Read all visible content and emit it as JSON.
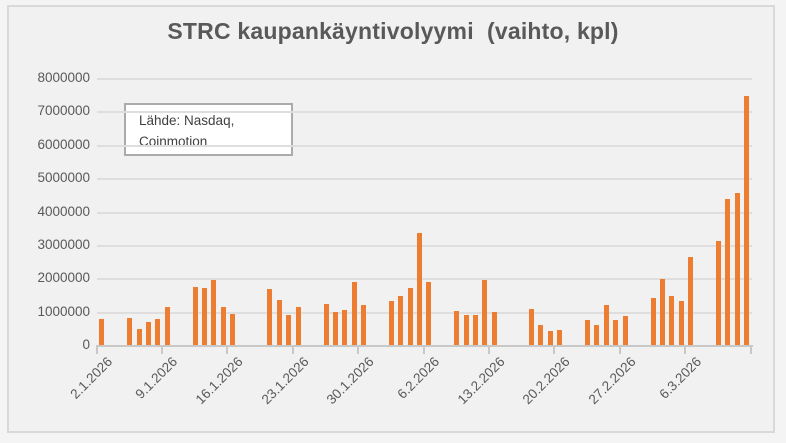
{
  "title": "STRC kaupankäyntivolyymi  (vaihto, kpl)",
  "source_box": {
    "line1": "Lähde: Nasdaq,",
    "line2": "Coinmotion"
  },
  "colors": {
    "bar": "#ED7D31",
    "chart_background": "#F1F1F1",
    "frame_border": "#D9D9D9",
    "gridline": "#DEDEDE",
    "axis_line": "#C8C8C8",
    "label_text": "#595959",
    "annotation_text": "#404040",
    "annotation_border": "#ABABAB"
  },
  "chart_data": {
    "type": "bar",
    "title": "STRC kaupankäyntivolyymi (vaihto, kpl)",
    "xlabel": "",
    "ylabel": "",
    "ylim": [
      0,
      8000000
    ],
    "y_tick_step": 1000000,
    "grid": true,
    "legend": false,
    "annotation": "Lähde: Nasdaq, Coinmotion",
    "y_tick_labels": [
      "0",
      "1000000",
      "2000000",
      "3000000",
      "4000000",
      "5000000",
      "6000000",
      "7000000",
      "8000000"
    ],
    "x_tick_labels": [
      "2.1.2026",
      "9.1.2026",
      "16.1.2026",
      "23.1.2026",
      "30.1.2026",
      "6.2.2026",
      "13.2.2026",
      "20.2.2026",
      "27.2.2026",
      "6.3.2026"
    ],
    "points": [
      {
        "date": "2.1.2026",
        "value": 780000
      },
      {
        "date": "5.1.2026",
        "value": 820000
      },
      {
        "date": "6.1.2026",
        "value": 470000
      },
      {
        "date": "7.1.2026",
        "value": 700000
      },
      {
        "date": "8.1.2026",
        "value": 780000
      },
      {
        "date": "9.1.2026",
        "value": 1130000
      },
      {
        "date": "12.1.2026",
        "value": 1750000
      },
      {
        "date": "13.1.2026",
        "value": 1720000
      },
      {
        "date": "14.1.2026",
        "value": 1950000
      },
      {
        "date": "15.1.2026",
        "value": 1150000
      },
      {
        "date": "16.1.2026",
        "value": 920000
      },
      {
        "date": "20.1.2026",
        "value": 1680000
      },
      {
        "date": "21.1.2026",
        "value": 1350000
      },
      {
        "date": "22.1.2026",
        "value": 900000
      },
      {
        "date": "23.1.2026",
        "value": 1150000
      },
      {
        "date": "26.1.2026",
        "value": 1220000
      },
      {
        "date": "27.1.2026",
        "value": 1000000
      },
      {
        "date": "28.1.2026",
        "value": 1050000
      },
      {
        "date": "29.1.2026",
        "value": 1900000
      },
      {
        "date": "30.1.2026",
        "value": 1200000
      },
      {
        "date": "2.2.2026",
        "value": 1330000
      },
      {
        "date": "3.2.2026",
        "value": 1470000
      },
      {
        "date": "4.2.2026",
        "value": 1700000
      },
      {
        "date": "5.2.2026",
        "value": 3350000
      },
      {
        "date": "6.2.2026",
        "value": 1880000
      },
      {
        "date": "9.2.2026",
        "value": 1020000
      },
      {
        "date": "10.2.2026",
        "value": 900000
      },
      {
        "date": "11.2.2026",
        "value": 900000
      },
      {
        "date": "12.2.2026",
        "value": 1950000
      },
      {
        "date": "13.2.2026",
        "value": 1000000
      },
      {
        "date": "17.2.2026",
        "value": 1080000
      },
      {
        "date": "18.2.2026",
        "value": 600000
      },
      {
        "date": "19.2.2026",
        "value": 420000
      },
      {
        "date": "20.2.2026",
        "value": 450000
      },
      {
        "date": "23.2.2026",
        "value": 750000
      },
      {
        "date": "24.2.2026",
        "value": 610000
      },
      {
        "date": "25.2.2026",
        "value": 1200000
      },
      {
        "date": "26.2.2026",
        "value": 750000
      },
      {
        "date": "27.2.2026",
        "value": 880000
      },
      {
        "date": "2.3.2026",
        "value": 1420000
      },
      {
        "date": "3.3.2026",
        "value": 1980000
      },
      {
        "date": "4.3.2026",
        "value": 1470000
      },
      {
        "date": "5.3.2026",
        "value": 1320000
      },
      {
        "date": "6.3.2026",
        "value": 2630000
      },
      {
        "date": "9.3.2026",
        "value": 3120000
      },
      {
        "date": "10.3.2026",
        "value": 4360000
      },
      {
        "date": "11.3.2026",
        "value": 4560000
      },
      {
        "date": "12.3.2026",
        "value": 7450000
      }
    ]
  }
}
